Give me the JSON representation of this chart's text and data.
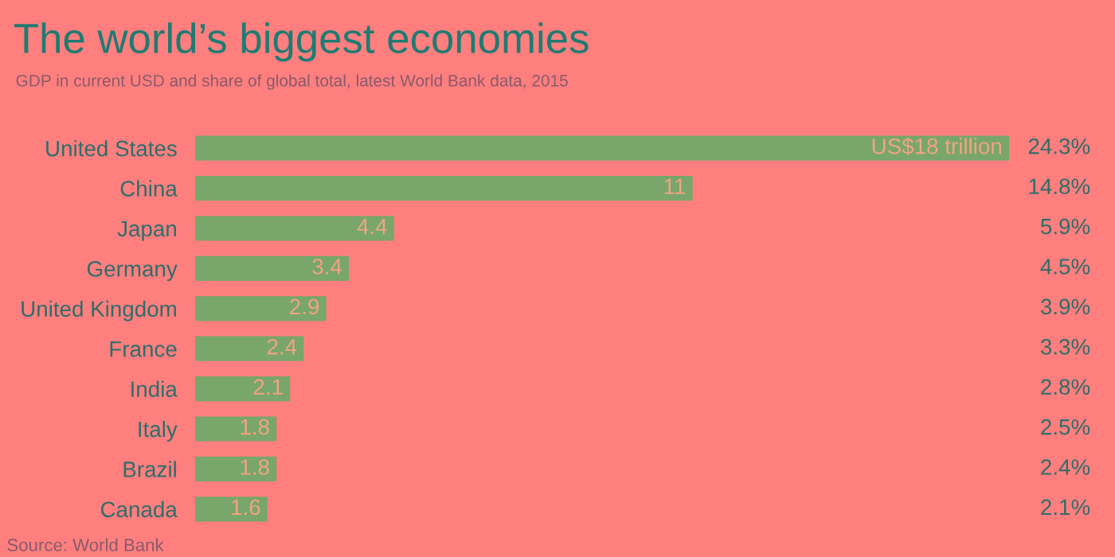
{
  "chart_data": {
    "type": "bar",
    "orientation": "horizontal",
    "title": "The world’s biggest economies",
    "subtitle": "GDP in current USD and share of global total, latest World Bank data, 2015",
    "categories": [
      "United States",
      "China",
      "Japan",
      "Germany",
      "United Kingdom",
      "France",
      "India",
      "Italy",
      "Brazil",
      "Canada"
    ],
    "values": [
      18,
      11,
      4.4,
      3.4,
      2.9,
      2.4,
      2.1,
      1.8,
      1.8,
      1.6
    ],
    "value_labels": [
      "US$18 trillion",
      "11",
      "4.4",
      "3.4",
      "2.9",
      "2.4",
      "2.1",
      "1.8",
      "1.8",
      "1.6"
    ],
    "color": "#79a66a",
    "annotations": [
      "24.3%",
      "14.8%",
      "5.9%",
      "4.5%",
      "3.9%",
      "3.3%",
      "2.8%",
      "2.5%",
      "2.4%",
      "2.1%",
      "Source: World Bank"
    ],
    "grid": false,
    "legend": false
  }
}
